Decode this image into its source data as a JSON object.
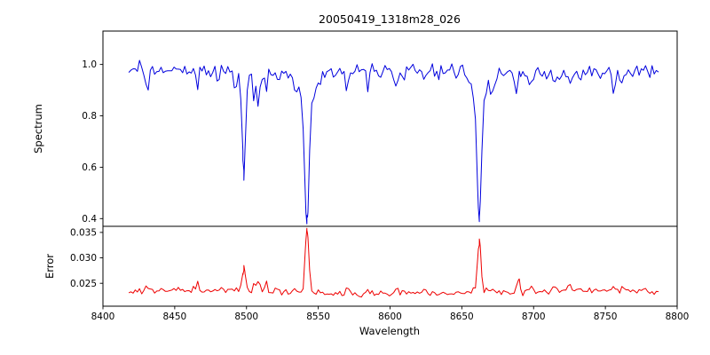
{
  "chart_data": {
    "type": "line",
    "title": "20050419_1318m28_026",
    "xlabel": "Wavelength",
    "x_range": [
      8400,
      8800
    ],
    "x_ticks": {
      "values": [
        8400,
        8450,
        8500,
        8550,
        8600,
        8650,
        8700,
        8750,
        8800
      ],
      "labels": [
        "8400",
        "8450",
        "8500",
        "8550",
        "8600",
        "8650",
        "8700",
        "8750",
        "8800"
      ]
    },
    "data_x_start": 8418,
    "data_x_end": 8788,
    "sample_step": 1.5,
    "background": "#ffffff",
    "axes_color": "#000000",
    "legend": "none",
    "grid": false,
    "panels": [
      {
        "name": "spectrum",
        "ylabel": "Spectrum",
        "ylim": [
          0.37,
          1.13
        ],
        "y_ticks": {
          "values": [
            1.0,
            0.8,
            0.6,
            0.4
          ],
          "labels": [
            "1.0",
            "0.8",
            "0.6",
            "0.4"
          ]
        },
        "color": "#0000dd",
        "continuum": 0.975,
        "noise_amplitude": 0.026,
        "absorption_lines": [
          {
            "center": 8498.2,
            "min_value": 0.59,
            "components": [
              {
                "depth": 0.33,
                "sigma": 1.0
              },
              {
                "depth": 0.05,
                "sigma": 3.5
              }
            ]
          },
          {
            "center": 8542.1,
            "min_value": 0.39,
            "components": [
              {
                "depth": 0.5,
                "sigma": 1.6
              },
              {
                "depth": 0.08,
                "sigma": 6.0
              }
            ]
          },
          {
            "center": 8662.2,
            "min_value": 0.42,
            "components": [
              {
                "depth": 0.49,
                "sigma": 1.5
              },
              {
                "depth": 0.07,
                "sigma": 5.5
              }
            ]
          }
        ],
        "minor_lines": [
          {
            "center": 8466,
            "depth": 0.07,
            "sigma": 0.8
          },
          {
            "center": 8505,
            "depth": 0.1,
            "sigma": 0.8
          },
          {
            "center": 8514,
            "depth": 0.06,
            "sigma": 0.8
          },
          {
            "center": 8570,
            "depth": 0.09,
            "sigma": 0.9
          },
          {
            "center": 8610,
            "depth": 0.05,
            "sigma": 0.8
          },
          {
            "center": 8688,
            "depth": 0.06,
            "sigma": 0.8
          },
          {
            "center": 8714,
            "depth": 0.05,
            "sigma": 0.8
          }
        ]
      },
      {
        "name": "error",
        "ylabel": "Error",
        "ylim": [
          0.0205,
          0.0362
        ],
        "y_ticks": {
          "values": [
            0.035,
            0.03,
            0.025
          ],
          "labels": [
            "0.035",
            "0.030",
            "0.025"
          ]
        },
        "color": "#ee0000",
        "baseline": 0.0232,
        "noise_amplitude": 0.00055,
        "peaks": [
          {
            "center": 8498.2,
            "height": 0.0046,
            "sigma": 1.0
          },
          {
            "center": 8542.1,
            "height": 0.0124,
            "sigma": 1.3
          },
          {
            "center": 8662.2,
            "height": 0.01,
            "sigma": 1.2
          },
          {
            "center": 8690.0,
            "height": 0.002,
            "sigma": 0.8
          }
        ]
      }
    ]
  }
}
